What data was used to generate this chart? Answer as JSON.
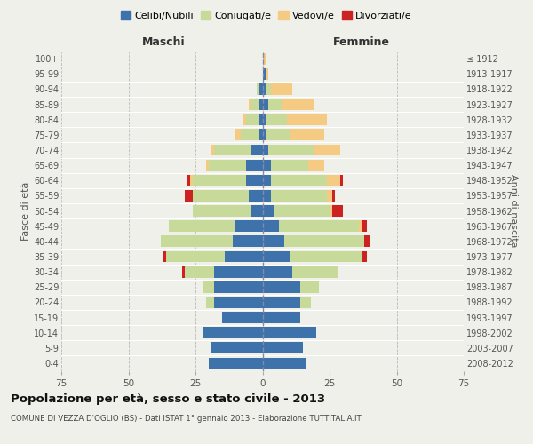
{
  "age_groups": [
    "0-4",
    "5-9",
    "10-14",
    "15-19",
    "20-24",
    "25-29",
    "30-34",
    "35-39",
    "40-44",
    "45-49",
    "50-54",
    "55-59",
    "60-64",
    "65-69",
    "70-74",
    "75-79",
    "80-84",
    "85-89",
    "90-94",
    "95-99",
    "100+"
  ],
  "birth_years": [
    "2008-2012",
    "2003-2007",
    "1998-2002",
    "1993-1997",
    "1988-1992",
    "1983-1987",
    "1978-1982",
    "1973-1977",
    "1968-1972",
    "1963-1967",
    "1958-1962",
    "1953-1957",
    "1948-1952",
    "1943-1947",
    "1938-1942",
    "1933-1937",
    "1928-1932",
    "1923-1927",
    "1918-1922",
    "1913-1917",
    "≤ 1912"
  ],
  "colors": {
    "celibi": "#3d72aa",
    "coniugati": "#c8da9a",
    "vedovi": "#f5ca82",
    "divorziati": "#cc2222"
  },
  "males": {
    "celibi": [
      20,
      19,
      22,
      15,
      18,
      18,
      18,
      14,
      11,
      10,
      4,
      5,
      6,
      6,
      4,
      1,
      1,
      1,
      1,
      0,
      0
    ],
    "coniugati": [
      0,
      0,
      0,
      0,
      3,
      4,
      11,
      22,
      27,
      25,
      22,
      21,
      20,
      14,
      14,
      7,
      5,
      3,
      1,
      0,
      0
    ],
    "vedovi": [
      0,
      0,
      0,
      0,
      0,
      0,
      0,
      0,
      0,
      0,
      0,
      0,
      1,
      1,
      1,
      2,
      1,
      1,
      0,
      0,
      0
    ],
    "divorziati": [
      0,
      0,
      0,
      0,
      0,
      0,
      1,
      1,
      0,
      0,
      0,
      3,
      1,
      0,
      0,
      0,
      0,
      0,
      0,
      0,
      0
    ]
  },
  "females": {
    "celibi": [
      16,
      15,
      20,
      14,
      14,
      14,
      11,
      10,
      8,
      6,
      4,
      3,
      3,
      3,
      2,
      1,
      1,
      2,
      1,
      1,
      0
    ],
    "coniugati": [
      0,
      0,
      0,
      0,
      4,
      7,
      17,
      27,
      30,
      30,
      21,
      21,
      21,
      14,
      17,
      9,
      8,
      5,
      2,
      0,
      0
    ],
    "vedovi": [
      0,
      0,
      0,
      0,
      0,
      0,
      0,
      0,
      0,
      1,
      1,
      2,
      5,
      6,
      10,
      13,
      15,
      12,
      8,
      1,
      1
    ],
    "divorziati": [
      0,
      0,
      0,
      0,
      0,
      0,
      0,
      2,
      2,
      2,
      4,
      1,
      1,
      0,
      0,
      0,
      0,
      0,
      0,
      0,
      0
    ]
  },
  "xlim": 75,
  "title": "Popolazione per età, sesso e stato civile - 2013",
  "subtitle": "COMUNE DI VEZZA D'OGLIO (BS) - Dati ISTAT 1° gennaio 2013 - Elaborazione TUTTITALIA.IT",
  "xlabel_left": "Maschi",
  "xlabel_right": "Femmine",
  "ylabel_left": "Fasce di età",
  "ylabel_right": "Anni di nascita",
  "legend_labels": [
    "Celibi/Nubili",
    "Coniugati/e",
    "Vedovi/e",
    "Divorziati/e"
  ],
  "bg_color": "#f0f0ea",
  "plot_bg": "#f0f0ea",
  "grid_color": "#bbbbbb"
}
